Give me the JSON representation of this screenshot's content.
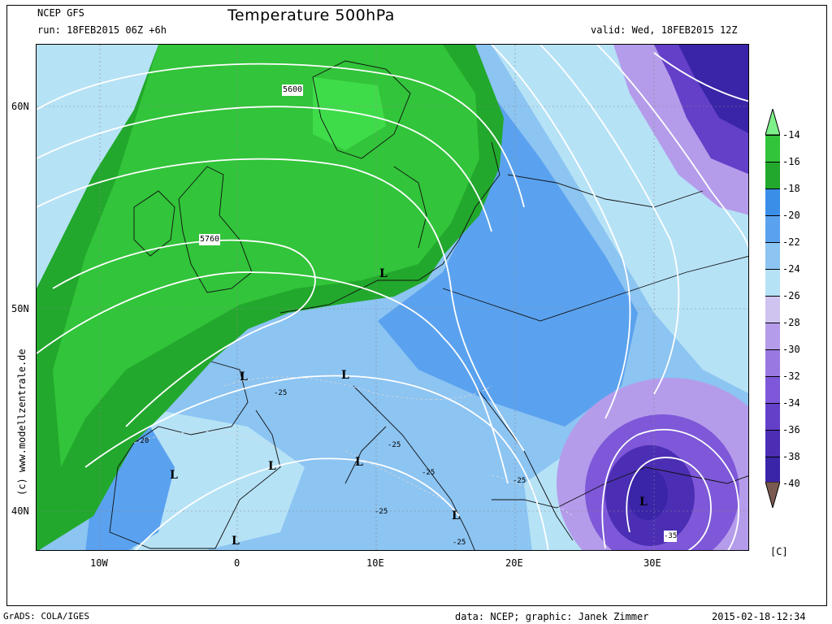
{
  "header": {
    "model": "NCEP GFS",
    "run": "run: 18FEB2015 06Z +6h",
    "title": "Temperature 500hPa",
    "valid": "valid: Wed, 18FEB2015 12Z"
  },
  "footer": {
    "software": "GrADS: COLA/IGES",
    "credits": "data: NCEP; graphic: Janek Zimmer",
    "timestamp": "2015-02-18-12:34"
  },
  "copyright": "(c) www.modellzentrale.de",
  "axes": {
    "lat_labels": [
      "60N",
      "50N",
      "40N"
    ],
    "lon_labels": [
      "10W",
      "0",
      "10E",
      "20E",
      "30E"
    ]
  },
  "legend": {
    "unit": "[C]",
    "levels": [
      "-14",
      "-16",
      "-18",
      "-20",
      "-22",
      "-24",
      "-26",
      "-28",
      "-30",
      "-32",
      "-34",
      "-36",
      "-38",
      "-40"
    ],
    "colors": [
      "#3fdc4a",
      "#32c43a",
      "#22a82c",
      "#3a8ee8",
      "#5aa2ef",
      "#8cc4f2",
      "#b6e2f6",
      "#cfc4f0",
      "#b49ceb",
      "#9a78e2",
      "#7e58d8",
      "#6440c8",
      "#4c2eb4",
      "#3a24a8"
    ],
    "top_arrow_color": "#7df08a",
    "bottom_arrow_color": "#7a5a50"
  },
  "contour_labels": {
    "height": [
      "5600",
      "5760"
    ],
    "temp": [
      "-25",
      "-25",
      "-20",
      "-25",
      "-25",
      "-25",
      "-25",
      "-35"
    ],
    "lows": [
      "L",
      "L",
      "L",
      "L",
      "L",
      "L",
      "L",
      "L",
      "L"
    ]
  }
}
